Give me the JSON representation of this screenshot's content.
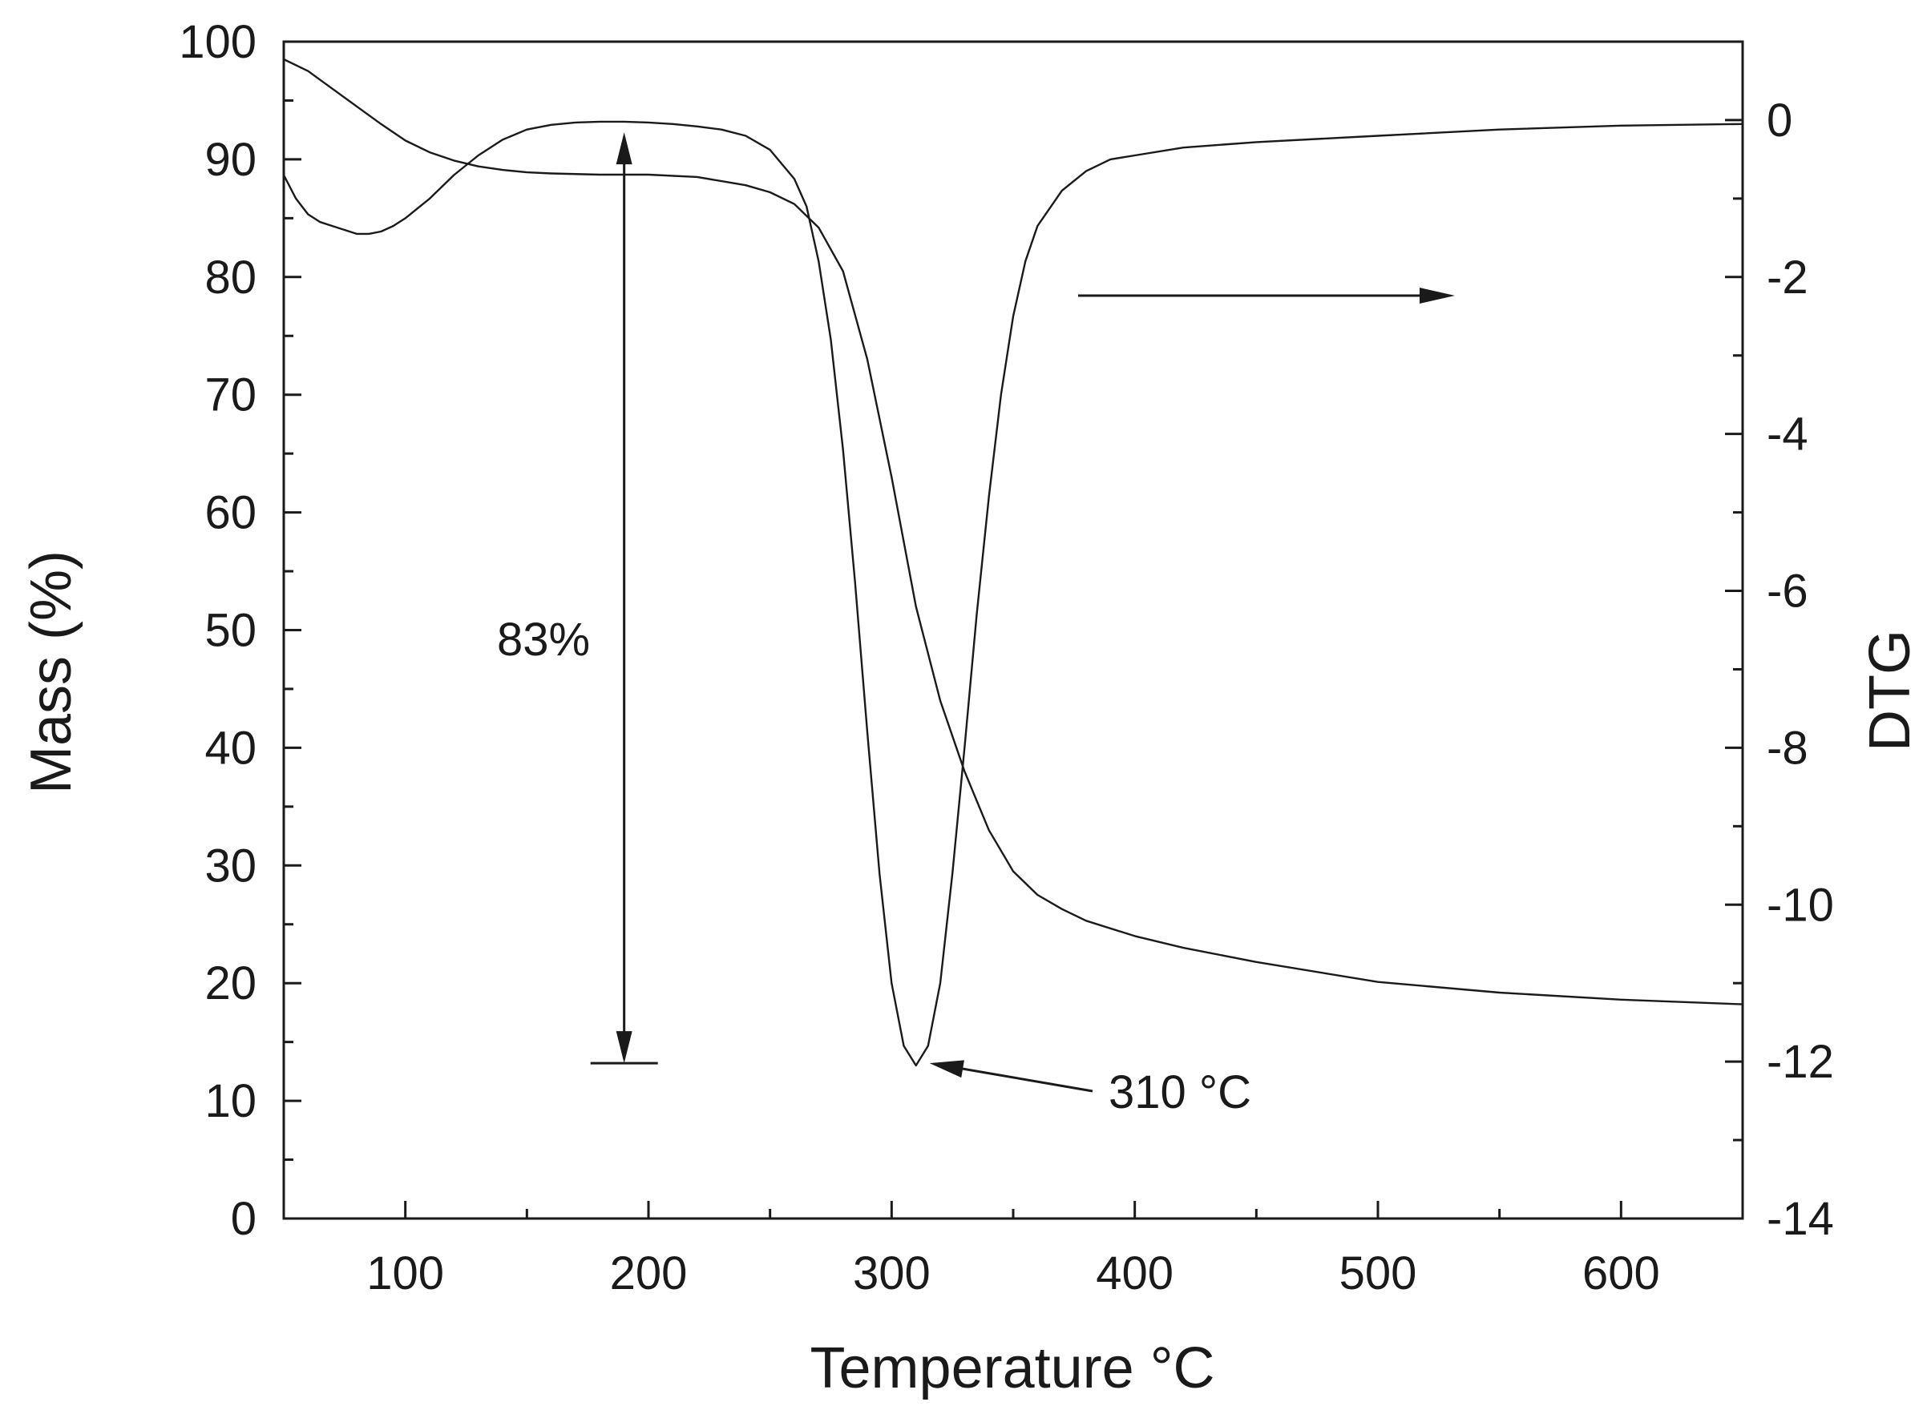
{
  "chart_data": {
    "type": "line",
    "xlabel": "Temperature °C",
    "ylabel": "Mass (%)",
    "y2label": "DTG",
    "xlim": [
      50,
      650
    ],
    "ylim": [
      0,
      100
    ],
    "y2lim": [
      -14,
      1
    ],
    "x_ticks": [
      100,
      200,
      300,
      400,
      500,
      600
    ],
    "y_ticks": [
      0,
      10,
      20,
      30,
      40,
      50,
      60,
      70,
      80,
      90,
      100
    ],
    "y2_ticks": [
      0,
      -2,
      -4,
      -6,
      -8,
      -10,
      -12,
      -14
    ],
    "grid": false,
    "series": [
      {
        "axis": "left",
        "x": [
          50,
          60,
          70,
          80,
          90,
          100,
          110,
          120,
          130,
          140,
          150,
          160,
          180,
          200,
          220,
          240,
          250,
          260,
          270,
          280,
          290,
          300,
          310,
          320,
          330,
          340,
          350,
          360,
          370,
          380,
          400,
          420,
          450,
          500,
          550,
          600,
          650
        ],
        "y": [
          98.5,
          97.5,
          96.0,
          94.5,
          93.0,
          91.6,
          90.6,
          89.9,
          89.4,
          89.1,
          88.9,
          88.8,
          88.7,
          88.7,
          88.5,
          87.8,
          87.2,
          86.2,
          84.2,
          80.5,
          73.0,
          63.0,
          52.0,
          44.0,
          38.0,
          33.0,
          29.5,
          27.5,
          26.3,
          25.3,
          24.0,
          23.0,
          21.8,
          20.1,
          19.2,
          18.6,
          18.2
        ]
      },
      {
        "axis": "right",
        "x": [
          50,
          55,
          60,
          65,
          70,
          75,
          80,
          85,
          90,
          95,
          100,
          110,
          120,
          130,
          140,
          150,
          160,
          170,
          180,
          190,
          200,
          210,
          220,
          230,
          240,
          250,
          260,
          265,
          270,
          275,
          280,
          285,
          290,
          295,
          300,
          305,
          310,
          315,
          320,
          325,
          330,
          335,
          340,
          345,
          350,
          355,
          360,
          370,
          380,
          390,
          400,
          420,
          450,
          500,
          550,
          600,
          650
        ],
        "y": [
          -0.7,
          -1.0,
          -1.2,
          -1.3,
          -1.35,
          -1.4,
          -1.45,
          -1.45,
          -1.42,
          -1.35,
          -1.25,
          -1.0,
          -0.7,
          -0.45,
          -0.25,
          -0.12,
          -0.06,
          -0.03,
          -0.02,
          -0.02,
          -0.03,
          -0.05,
          -0.08,
          -0.12,
          -0.2,
          -0.38,
          -0.75,
          -1.1,
          -1.8,
          -2.8,
          -4.2,
          -5.9,
          -7.8,
          -9.6,
          -11.0,
          -11.8,
          -12.05,
          -11.8,
          -11.0,
          -9.6,
          -8.0,
          -6.3,
          -4.8,
          -3.5,
          -2.5,
          -1.8,
          -1.35,
          -0.9,
          -0.65,
          -0.5,
          -0.45,
          -0.35,
          -0.28,
          -0.2,
          -0.12,
          -0.07,
          -0.05
        ]
      }
    ],
    "annotations": [
      {
        "text": "83%",
        "type": "double-arrow",
        "x": 190,
        "y_from": 92.3,
        "y_to": 13.2
      },
      {
        "text": "310 °C",
        "type": "arrow",
        "points_to": [
          311,
          -12.0
        ]
      },
      {
        "text": "",
        "type": "arrow",
        "indicates": "right-axis"
      }
    ]
  }
}
